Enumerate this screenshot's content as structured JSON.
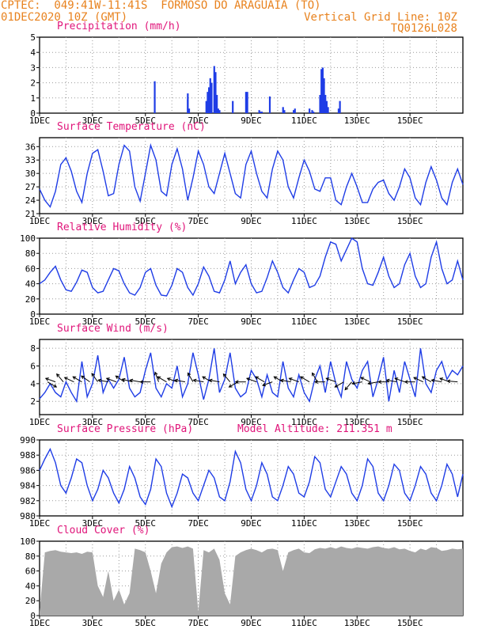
{
  "header": {
    "line1": "CPTEC:  049:41W-11:41S  FORMOSO DO ARAGUAIA (TO)",
    "line2_left": "01DEC2020 10Z (GMT)",
    "line2_right": "Vertical Grid Line: 10Z",
    "line3_right": "TQ0126L028"
  },
  "colors": {
    "line": "#1f3de6",
    "bar": "#1f3de6",
    "cloud": "#a9a9a9",
    "title": "#e0157a",
    "header": "#e8821e",
    "grid": "#9a9a9a"
  },
  "x_labels": [
    "1DEC",
    "3DEC",
    "5DEC",
    "7DEC",
    "9DEC",
    "11DEC",
    "13DEC",
    "15DEC"
  ],
  "chart_data": [
    {
      "type": "bar",
      "title": "Precipitation (mm/h)",
      "ylim": [
        0,
        5
      ],
      "yticks": [
        0,
        1,
        2,
        3,
        4,
        5
      ],
      "x": [
        4.35,
        5.6,
        5.6,
        5.65,
        6.3,
        6.35,
        6.4,
        6.45,
        6.5,
        6.6,
        6.65,
        6.7,
        6.75,
        6.8,
        7.3,
        7.8,
        7.85,
        8.3,
        8.35,
        8.4,
        8.7,
        9.2,
        9.25,
        9.6,
        9.65,
        10.2,
        10.3,
        10.35,
        10.6,
        10.65,
        10.7,
        10.75,
        10.8,
        10.85,
        10.9,
        11.3,
        11.35
      ],
      "values": [
        2.1,
        1.3,
        0.9,
        0.3,
        0.8,
        1.4,
        1.7,
        2.3,
        2.0,
        3.1,
        2.7,
        1.2,
        0.3,
        0.2,
        0.8,
        1.4,
        1.4,
        0.2,
        0.1,
        0.1,
        1.1,
        0.4,
        0.2,
        0.2,
        0.3,
        0.3,
        0.2,
        0.1,
        1.2,
        2.9,
        3.0,
        2.3,
        1.2,
        0.8,
        0.4,
        0.3,
        0.8
      ]
    },
    {
      "type": "line",
      "title": "Surface Temperature (nC)",
      "ylim": [
        21,
        38
      ],
      "yticks": [
        21,
        24,
        27,
        30,
        33,
        36
      ],
      "x": [
        0,
        0.2,
        0.4,
        0.6,
        0.8,
        1.0,
        1.2,
        1.4,
        1.6,
        1.8,
        2.0,
        2.2,
        2.4,
        2.6,
        2.8,
        3.0,
        3.2,
        3.4,
        3.6,
        3.8,
        4.0,
        4.2,
        4.4,
        4.6,
        4.8,
        5.0,
        5.2,
        5.4,
        5.6,
        5.8,
        6.0,
        6.2,
        6.4,
        6.6,
        6.8,
        7.0,
        7.2,
        7.4,
        7.6,
        7.8,
        8.0,
        8.2,
        8.4,
        8.6,
        8.8,
        9.0,
        9.2,
        9.4,
        9.6,
        9.8,
        10.0,
        10.2,
        10.4,
        10.6,
        10.8,
        11.0,
        11.2,
        11.4,
        11.6,
        11.8,
        12.0,
        12.2,
        12.4,
        12.6,
        12.8,
        13.0,
        13.2,
        13.4,
        13.6,
        13.8,
        14.0,
        14.2,
        14.4,
        14.6,
        14.8,
        15.0,
        15.2,
        15.4,
        15.6,
        15.8,
        16.0
      ],
      "values": [
        26.5,
        24.0,
        22.5,
        26.0,
        32.0,
        33.5,
        30.5,
        26.0,
        23.5,
        30.0,
        34.5,
        35.3,
        30.5,
        25.0,
        25.5,
        32.0,
        36.3,
        35.0,
        27.0,
        23.8,
        30.0,
        36.3,
        33.0,
        26.0,
        25.0,
        32.0,
        35.5,
        31.0,
        24.0,
        29.0,
        35.0,
        32.0,
        27.0,
        25.5,
        30.0,
        34.5,
        30.0,
        25.5,
        24.5,
        32.0,
        35.0,
        30.0,
        26.0,
        24.5,
        31.0,
        35.0,
        33.0,
        27.0,
        24.5,
        29.0,
        33.0,
        30.5,
        26.5,
        26.0,
        29.0,
        29.0,
        24.0,
        23.0,
        27.0,
        30.0,
        27.0,
        23.5,
        23.5,
        26.5,
        28.0,
        28.5,
        25.5,
        24.0,
        27.0,
        31.0,
        29.0,
        24.5,
        23.0,
        28.0,
        31.5,
        28.5,
        24.5,
        23.0,
        28.0,
        31.0,
        27.5
      ]
    },
    {
      "type": "line",
      "title": "Relative Humidity (%)",
      "ylim": [
        0,
        100
      ],
      "yticks": [
        0,
        20,
        40,
        60,
        80,
        100
      ],
      "x": [
        0,
        0.2,
        0.4,
        0.6,
        0.8,
        1.0,
        1.2,
        1.4,
        1.6,
        1.8,
        2.0,
        2.2,
        2.4,
        2.6,
        2.8,
        3.0,
        3.2,
        3.4,
        3.6,
        3.8,
        4.0,
        4.2,
        4.4,
        4.6,
        4.8,
        5.0,
        5.2,
        5.4,
        5.6,
        5.8,
        6.0,
        6.2,
        6.4,
        6.6,
        6.8,
        7.0,
        7.2,
        7.4,
        7.6,
        7.8,
        8.0,
        8.2,
        8.4,
        8.6,
        8.8,
        9.0,
        9.2,
        9.4,
        9.6,
        9.8,
        10.0,
        10.2,
        10.4,
        10.6,
        10.8,
        11.0,
        11.2,
        11.4,
        11.6,
        11.8,
        12.0,
        12.2,
        12.4,
        12.6,
        12.8,
        13.0,
        13.2,
        13.4,
        13.6,
        13.8,
        14.0,
        14.2,
        14.4,
        14.6,
        14.8,
        15.0,
        15.2,
        15.4,
        15.6,
        15.8,
        16.0
      ],
      "values": [
        40,
        45,
        55,
        63,
        45,
        32,
        30,
        42,
        58,
        55,
        35,
        28,
        30,
        45,
        60,
        57,
        40,
        28,
        25,
        35,
        55,
        60,
        38,
        25,
        24,
        38,
        60,
        55,
        35,
        25,
        40,
        62,
        50,
        30,
        28,
        45,
        70,
        40,
        55,
        65,
        40,
        28,
        30,
        48,
        70,
        55,
        35,
        28,
        45,
        60,
        55,
        35,
        38,
        50,
        75,
        95,
        92,
        70,
        85,
        100,
        95,
        60,
        40,
        38,
        55,
        75,
        50,
        35,
        40,
        65,
        80,
        50,
        35,
        40,
        75,
        95,
        60,
        40,
        45,
        70,
        45
      ]
    },
    {
      "type": "line",
      "title": "Surface Wind (m/s)",
      "ylim": [
        0.5,
        9
      ],
      "yticks": [
        2,
        4,
        6,
        8
      ],
      "x": [
        0,
        0.2,
        0.4,
        0.6,
        0.8,
        1.0,
        1.2,
        1.4,
        1.6,
        1.8,
        2.0,
        2.2,
        2.4,
        2.6,
        2.8,
        3.0,
        3.2,
        3.4,
        3.6,
        3.8,
        4.0,
        4.2,
        4.4,
        4.6,
        4.8,
        5.0,
        5.2,
        5.4,
        5.6,
        5.8,
        6.0,
        6.2,
        6.4,
        6.6,
        6.8,
        7.0,
        7.2,
        7.4,
        7.6,
        7.8,
        8.0,
        8.2,
        8.4,
        8.6,
        8.8,
        9.0,
        9.2,
        9.4,
        9.6,
        9.8,
        10.0,
        10.2,
        10.4,
        10.6,
        10.8,
        11.0,
        11.2,
        11.4,
        11.6,
        11.8,
        12.0,
        12.2,
        12.4,
        12.6,
        12.8,
        13.0,
        13.2,
        13.4,
        13.6,
        13.8,
        14.0,
        14.2,
        14.4,
        14.6,
        14.8,
        15.0,
        15.2,
        15.4,
        15.6,
        15.8,
        16.0
      ],
      "values": [
        2.3,
        3.0,
        4.0,
        3.0,
        2.5,
        4.2,
        3.0,
        2.0,
        6.5,
        2.5,
        4.0,
        7.2,
        3.0,
        4.5,
        3.5,
        4.5,
        7.0,
        3.5,
        2.5,
        3.0,
        5.5,
        7.5,
        3.5,
        2.5,
        4.0,
        3.5,
        6.0,
        2.5,
        4.0,
        7.5,
        5.0,
        2.2,
        4.5,
        8.0,
        3.0,
        4.5,
        7.5,
        3.5,
        2.5,
        3.0,
        5.5,
        4.5,
        2.5,
        5.0,
        3.0,
        2.5,
        6.5,
        3.5,
        2.5,
        5.0,
        3.0,
        2.0,
        4.5,
        6.0,
        3.0,
        6.5,
        4.0,
        2.5,
        6.5,
        4.5,
        3.5,
        5.5,
        6.5,
        2.5,
        4.5,
        7.0,
        2.0,
        5.5,
        3.0,
        6.5,
        4.5,
        2.5,
        8.0,
        4.0,
        3.0,
        5.5,
        6.5,
        4.5,
        5.5,
        5.0,
        6.0
      ],
      "arrows_x": [
        0.3,
        0.6,
        0.9,
        1.3,
        1.6,
        1.9,
        2.2,
        2.6,
        2.9,
        3.2,
        3.5,
        3.8,
        4.2,
        4.5,
        4.8,
        5.2,
        5.5,
        5.8,
        6.2,
        6.5,
        6.8,
        7.2,
        7.5,
        7.8,
        8.2,
        8.5,
        8.8,
        9.2,
        9.5,
        9.8,
        10.2,
        10.5,
        10.8,
        11.2,
        11.5,
        11.8,
        12.2,
        12.5,
        12.8,
        13.2,
        13.5,
        13.8,
        14.2,
        14.5,
        14.8,
        15.2,
        15.5,
        15.8
      ],
      "arrows_dir": [
        30,
        200,
        230,
        205,
        210,
        215,
        235,
        190,
        200,
        215,
        195,
        190,
        180,
        250,
        210,
        200,
        190,
        240,
        190,
        210,
        190,
        230,
        150,
        180,
        200,
        210,
        160,
        210,
        190,
        200,
        210,
        240,
        180,
        200,
        150,
        130,
        170,
        205,
        170,
        180,
        190,
        200,
        180,
        205,
        210,
        190,
        200,
        185
      ]
    },
    {
      "type": "line",
      "title": "Surface Pressure (hPa)",
      "annotation": "Model Altitude: 211.351 m",
      "ylim": [
        980,
        990
      ],
      "yticks": [
        980,
        982,
        984,
        986,
        988,
        990
      ],
      "x": [
        0,
        0.2,
        0.4,
        0.6,
        0.8,
        1.0,
        1.2,
        1.4,
        1.6,
        1.8,
        2.0,
        2.2,
        2.4,
        2.6,
        2.8,
        3.0,
        3.2,
        3.4,
        3.6,
        3.8,
        4.0,
        4.2,
        4.4,
        4.6,
        4.8,
        5.0,
        5.2,
        5.4,
        5.6,
        5.8,
        6.0,
        6.2,
        6.4,
        6.6,
        6.8,
        7.0,
        7.2,
        7.4,
        7.6,
        7.8,
        8.0,
        8.2,
        8.4,
        8.6,
        8.8,
        9.0,
        9.2,
        9.4,
        9.6,
        9.8,
        10.0,
        10.2,
        10.4,
        10.6,
        10.8,
        11.0,
        11.2,
        11.4,
        11.6,
        11.8,
        12.0,
        12.2,
        12.4,
        12.6,
        12.8,
        13.0,
        13.2,
        13.4,
        13.6,
        13.8,
        14.0,
        14.2,
        14.4,
        14.6,
        14.8,
        15.0,
        15.2,
        15.4,
        15.6,
        15.8,
        16.0
      ],
      "values": [
        986,
        987.5,
        988.8,
        987,
        984,
        983,
        985,
        987.5,
        987,
        984,
        982,
        983.5,
        986,
        985,
        983,
        981.7,
        983.5,
        986.5,
        985,
        982.5,
        981.5,
        983.5,
        987.5,
        986.5,
        983,
        981.2,
        983,
        985.5,
        985,
        983,
        982,
        984,
        986,
        985,
        982.5,
        982,
        984.5,
        988.5,
        987,
        983.5,
        982,
        984,
        987,
        985.5,
        982.5,
        982,
        984,
        986.5,
        985.5,
        983,
        982.5,
        984.5,
        987.8,
        987,
        983.5,
        982.5,
        984.5,
        986.5,
        985.5,
        983,
        982,
        984,
        987.5,
        986.5,
        983,
        982,
        984,
        986.8,
        986,
        983,
        982,
        984,
        986.5,
        985.5,
        983,
        982,
        984,
        986.8,
        985.5,
        982.5,
        985.5
      ]
    },
    {
      "type": "area",
      "title": "Cloud Cover (%)",
      "ylim": [
        0,
        100
      ],
      "yticks": [
        0,
        20,
        40,
        60,
        80,
        100
      ],
      "x": [
        0,
        0.2,
        0.4,
        0.6,
        0.8,
        1.0,
        1.2,
        1.4,
        1.6,
        1.8,
        2.0,
        2.2,
        2.4,
        2.6,
        2.8,
        3.0,
        3.2,
        3.4,
        3.6,
        3.8,
        4.0,
        4.2,
        4.4,
        4.6,
        4.8,
        5.0,
        5.2,
        5.4,
        5.6,
        5.8,
        6.0,
        6.2,
        6.4,
        6.6,
        6.8,
        7.0,
        7.2,
        7.4,
        7.6,
        7.8,
        8.0,
        8.2,
        8.4,
        8.6,
        8.8,
        9.0,
        9.2,
        9.4,
        9.6,
        9.8,
        10.0,
        10.2,
        10.4,
        10.6,
        10.8,
        11.0,
        11.2,
        11.4,
        11.6,
        11.8,
        12.0,
        12.2,
        12.4,
        12.6,
        12.8,
        13.0,
        13.2,
        13.4,
        13.6,
        13.8,
        14.0,
        14.2,
        14.4,
        14.6,
        14.8,
        15.0,
        15.2,
        15.4,
        15.6,
        15.8,
        16.0
      ],
      "values": [
        5,
        85,
        87,
        88,
        86,
        85,
        84,
        85,
        83,
        86,
        85,
        40,
        25,
        60,
        20,
        35,
        15,
        30,
        90,
        88,
        85,
        60,
        30,
        70,
        85,
        92,
        93,
        91,
        93,
        90,
        5,
        88,
        85,
        90,
        75,
        30,
        15,
        80,
        85,
        88,
        90,
        88,
        85,
        89,
        90,
        88,
        60,
        85,
        88,
        90,
        85,
        84,
        89,
        91,
        90,
        92,
        90,
        93,
        91,
        90,
        92,
        91,
        90,
        92,
        93,
        91,
        90,
        92,
        89,
        90,
        87,
        85,
        90,
        88,
        92,
        91,
        87,
        88,
        90,
        89,
        90
      ]
    }
  ]
}
